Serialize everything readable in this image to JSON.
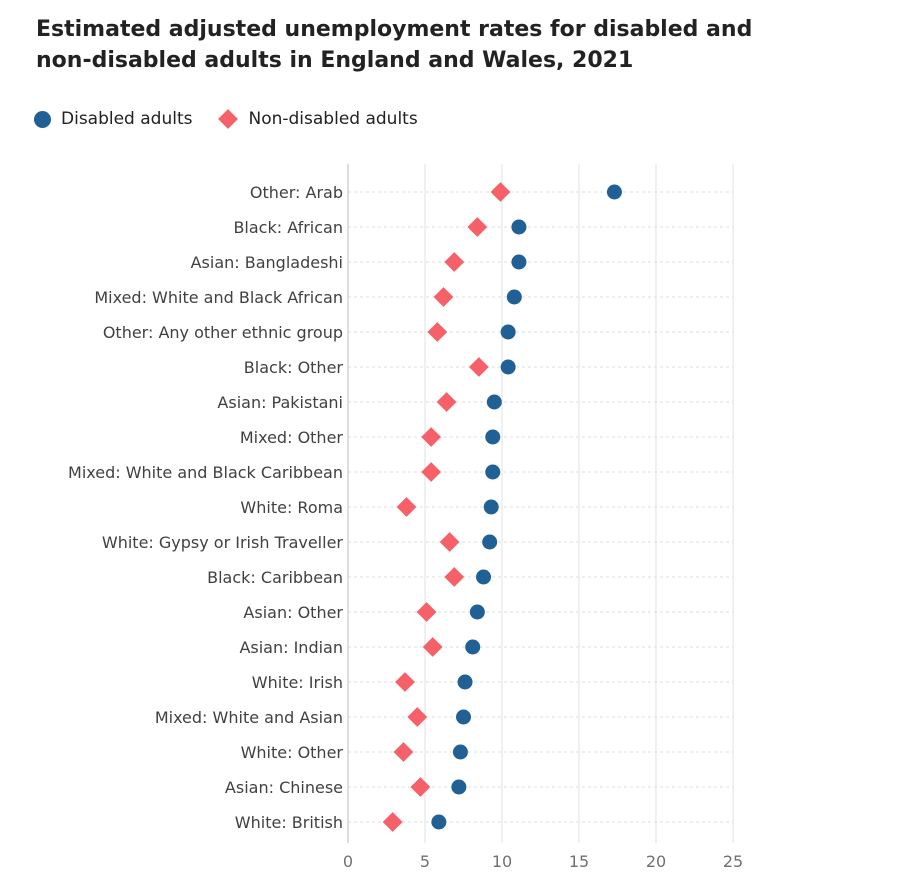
{
  "chart_data": {
    "type": "scatter",
    "title": "Estimated adjusted unemployment rates for disabled and non-disabled adults in England and Wales, 2021",
    "xlabel": "",
    "ylabel": "",
    "xlim": [
      0,
      25
    ],
    "xticks": [
      0,
      5,
      10,
      15,
      20,
      25
    ],
    "legend_position": "top-left",
    "categories": [
      "Other: Arab",
      "Black: African",
      "Asian: Bangladeshi",
      "Mixed: White and Black African",
      "Other: Any other ethnic group",
      "Black: Other",
      "Asian: Pakistani",
      "Mixed: Other",
      "Mixed: White and Black Caribbean",
      "White: Roma",
      "White: Gypsy or Irish Traveller",
      "Black: Caribbean",
      "Asian: Other",
      "Asian: Indian",
      "White: Irish",
      "Mixed: White and Asian",
      "White: Other",
      "Asian: Chinese",
      "White: British"
    ],
    "series": [
      {
        "name": "Disabled adults",
        "marker": "circle",
        "color": "#206095",
        "values": [
          17.3,
          11.1,
          11.1,
          10.8,
          10.4,
          10.4,
          9.5,
          9.4,
          9.4,
          9.3,
          9.2,
          8.8,
          8.4,
          8.1,
          7.6,
          7.5,
          7.3,
          7.2,
          5.9
        ]
      },
      {
        "name": "Non-disabled adults",
        "marker": "diamond",
        "color": "#f66068",
        "values": [
          9.9,
          8.4,
          6.9,
          6.2,
          5.8,
          8.5,
          6.4,
          5.4,
          5.4,
          3.8,
          6.6,
          6.9,
          5.1,
          5.5,
          3.7,
          4.5,
          3.6,
          4.7,
          2.9
        ]
      }
    ],
    "grid": true
  }
}
